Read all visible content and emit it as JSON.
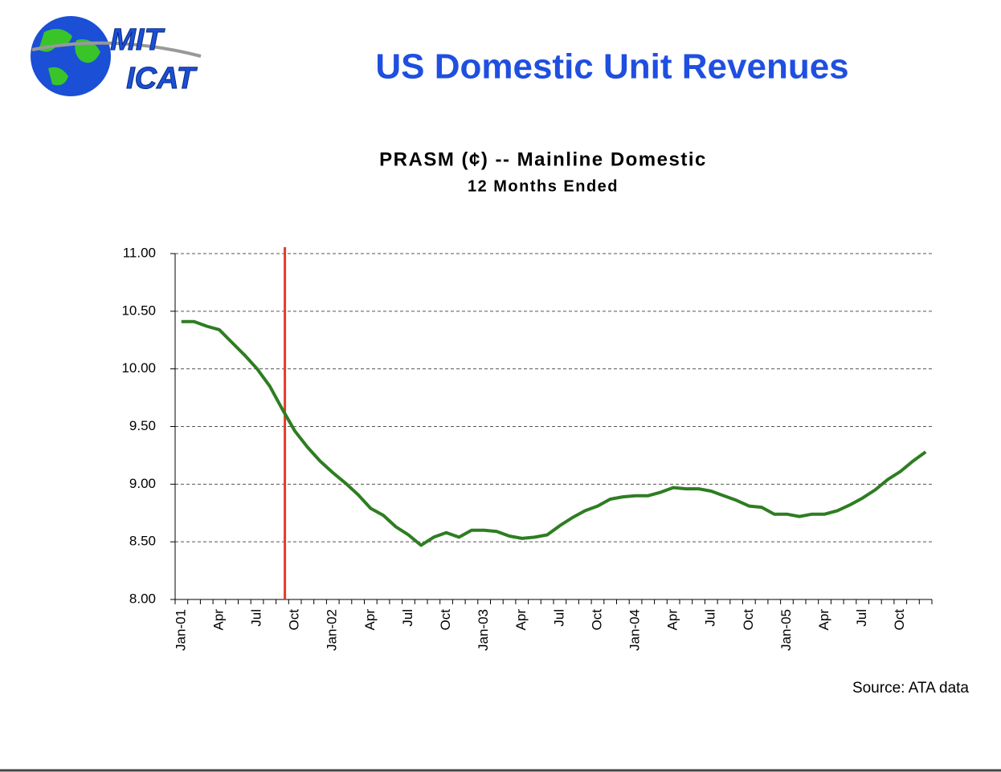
{
  "header": {
    "logo": [
      "MIT",
      "ICAT"
    ],
    "title": "US Domestic Unit Revenues"
  },
  "chart_data": {
    "type": "line",
    "title": "PRASM (¢) -- Mainline Domestic",
    "subtitle": "12 Months Ended",
    "categories": [
      "Jan-01",
      null,
      null,
      "Apr",
      null,
      null,
      "Jul",
      null,
      null,
      "Oct",
      null,
      null,
      "Jan-02",
      null,
      null,
      "Apr",
      null,
      null,
      "Jul",
      null,
      null,
      "Oct",
      null,
      null,
      "Jan-03",
      null,
      null,
      "Apr",
      null,
      null,
      "Jul",
      null,
      null,
      "Oct",
      null,
      null,
      "Jan-04",
      null,
      null,
      "Apr",
      null,
      null,
      "Jul",
      null,
      null,
      "Oct",
      null,
      null,
      "Jan-05",
      null,
      null,
      "Apr",
      null,
      null,
      "Jul",
      null,
      null,
      "Oct",
      null,
      null
    ],
    "values": [
      10.41,
      10.41,
      10.37,
      10.34,
      10.23,
      10.12,
      10.0,
      9.85,
      9.65,
      9.46,
      9.32,
      9.2,
      9.1,
      9.01,
      8.91,
      8.79,
      8.73,
      8.63,
      8.56,
      8.47,
      8.54,
      8.58,
      8.54,
      8.6,
      8.6,
      8.59,
      8.55,
      8.53,
      8.54,
      8.56,
      8.64,
      8.71,
      8.77,
      8.81,
      8.87,
      8.89,
      8.9,
      8.9,
      8.93,
      8.97,
      8.96,
      8.96,
      8.94,
      8.9,
      8.86,
      8.81,
      8.8,
      8.74,
      8.74,
      8.72,
      8.74,
      8.74,
      8.77,
      8.82,
      8.88,
      8.95,
      9.04,
      9.11,
      9.2,
      9.28
    ],
    "color": "#2e7d22",
    "ylim": [
      8,
      11
    ],
    "yticks": [
      {
        "value": 8,
        "label": "8.00"
      },
      {
        "value": 8.5,
        "label": "8.50"
      },
      {
        "value": 9,
        "label": "9.00"
      },
      {
        "value": 9.5,
        "label": "9.50"
      },
      {
        "value": 10,
        "label": "10.00"
      },
      {
        "value": 10.5,
        "label": "10.50"
      },
      {
        "value": 11,
        "label": "11.00"
      }
    ],
    "grid": true,
    "vline": {
      "at": 8.2,
      "color": "#e53a2b"
    }
  },
  "source": "Source: ATA data"
}
